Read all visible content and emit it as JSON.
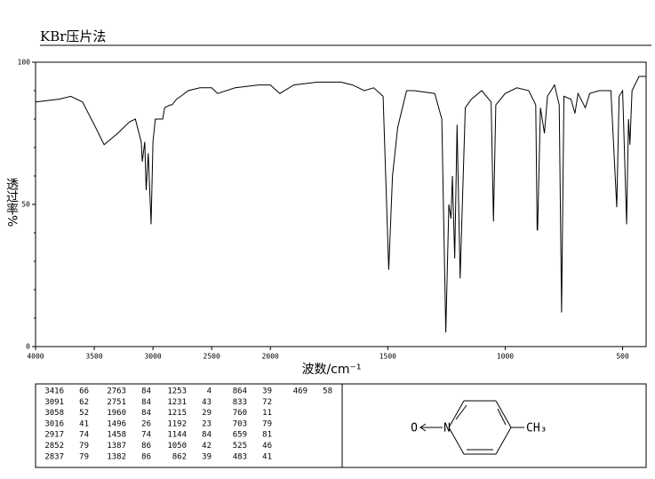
{
  "chart_data": {
    "type": "line",
    "title": "KBr压片法",
    "xlabel": "波数/cm⁻¹",
    "ylabel": "透过率%",
    "color": "#000000",
    "xlim": [
      4000,
      400
    ],
    "xbreak": 2000,
    "xticks": [
      4000,
      3500,
      3000,
      2500,
      2000,
      1500,
      1000,
      500
    ],
    "ylim": [
      0,
      100
    ],
    "yticks": [
      0,
      50,
      100
    ],
    "yminorticks": [
      10,
      20,
      30,
      40,
      60,
      70,
      80,
      90
    ],
    "x": [
      4000,
      3800,
      3700,
      3600,
      3500,
      3416,
      3300,
      3200,
      3150,
      3100,
      3091,
      3070,
      3058,
      3040,
      3016,
      3000,
      2980,
      2917,
      2900,
      2852,
      2837,
      2800,
      2763,
      2700,
      2600,
      2500,
      2450,
      2300,
      2100,
      2000,
      1960,
      1900,
      1800,
      1700,
      1650,
      1600,
      1560,
      1520,
      1496,
      1480,
      1458,
      1420,
      1387,
      1300,
      1270,
      1253,
      1240,
      1231,
      1225,
      1215,
      1205,
      1192,
      1170,
      1144,
      1100,
      1060,
      1050,
      1040,
      1000,
      950,
      900,
      870,
      864,
      862,
      850,
      833,
      820,
      790,
      770,
      760,
      750,
      720,
      703,
      690,
      659,
      640,
      600,
      550,
      525,
      515,
      500,
      483,
      475,
      469,
      460,
      430,
      400
    ],
    "values": [
      86,
      87,
      88,
      86,
      78,
      71,
      75,
      79,
      80,
      72,
      65,
      72,
      55,
      68,
      43,
      72,
      80,
      80,
      84,
      85,
      85,
      87,
      88,
      90,
      91,
      91,
      89,
      91,
      92,
      92,
      89,
      92,
      93,
      93,
      92,
      90,
      91,
      88,
      27,
      60,
      77,
      90,
      90,
      89,
      80,
      5,
      50,
      45,
      60,
      31,
      78,
      24,
      84,
      87,
      90,
      86,
      44,
      85,
      89,
      91,
      90,
      85,
      41,
      41,
      84,
      75,
      88,
      92,
      85,
      12,
      88,
      87,
      82,
      89,
      84,
      89,
      90,
      90,
      49,
      88,
      90,
      43,
      80,
      71,
      90,
      95,
      95
    ]
  },
  "peak_table": [
    [
      3416,
      66
    ],
    [
      3091,
      62
    ],
    [
      3058,
      52
    ],
    [
      3016,
      41
    ],
    [
      2917,
      74
    ],
    [
      2852,
      79
    ],
    [
      2837,
      79
    ],
    [
      2763,
      84
    ],
    [
      2751,
      84
    ],
    [
      1960,
      84
    ],
    [
      1496,
      26
    ],
    [
      1458,
      74
    ],
    [
      1387,
      86
    ],
    [
      1382,
      86
    ],
    [
      1253,
      4
    ],
    [
      1231,
      43
    ],
    [
      1215,
      29
    ],
    [
      1192,
      23
    ],
    [
      1144,
      84
    ],
    [
      1050,
      42
    ],
    [
      862,
      39
    ],
    [
      864,
      39
    ],
    [
      833,
      72
    ],
    [
      760,
      11
    ],
    [
      703,
      79
    ],
    [
      659,
      81
    ],
    [
      525,
      46
    ],
    [
      483,
      41
    ],
    [
      469,
      58
    ]
  ],
  "structure": {
    "atoms": [
      "O",
      "N",
      "CH₃"
    ]
  }
}
